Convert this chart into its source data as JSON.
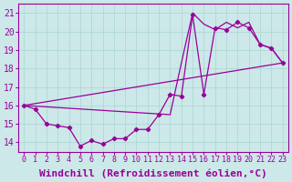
{
  "xlabel": "Windchill (Refroidissement éolien,°C)",
  "bg_color": "#cce8e8",
  "line_color": "#990099",
  "xlim": [
    -0.5,
    23.5
  ],
  "ylim": [
    13.5,
    21.5
  ],
  "yticks": [
    14,
    15,
    16,
    17,
    18,
    19,
    20,
    21
  ],
  "xticks": [
    0,
    1,
    2,
    3,
    4,
    5,
    6,
    7,
    8,
    9,
    10,
    11,
    12,
    13,
    14,
    15,
    16,
    17,
    18,
    19,
    20,
    21,
    22,
    23
  ],
  "series1_x": [
    0,
    1,
    2,
    3,
    4,
    5,
    6,
    7,
    8,
    9,
    10,
    11,
    12,
    13,
    14,
    15,
    16,
    17,
    18,
    19,
    20,
    21,
    22,
    23
  ],
  "series1_y": [
    16.0,
    15.8,
    15.0,
    14.9,
    14.8,
    13.8,
    14.1,
    13.9,
    14.2,
    14.2,
    14.7,
    14.7,
    15.5,
    16.6,
    16.5,
    20.9,
    16.6,
    20.2,
    20.1,
    20.5,
    20.2,
    19.3,
    19.1,
    18.3
  ],
  "series2_x": [
    0,
    23
  ],
  "series2_y": [
    16.0,
    18.3
  ],
  "series3_x": [
    0,
    13,
    14,
    15,
    16,
    17,
    18,
    19,
    20,
    21,
    22,
    23
  ],
  "series3_y": [
    16.0,
    15.5,
    18.3,
    21.0,
    20.4,
    20.1,
    20.5,
    20.2,
    20.5,
    19.3,
    19.1,
    18.3
  ],
  "grid_color": "#aad4d4",
  "tick_fontsize": 7,
  "xlabel_fontsize": 8
}
